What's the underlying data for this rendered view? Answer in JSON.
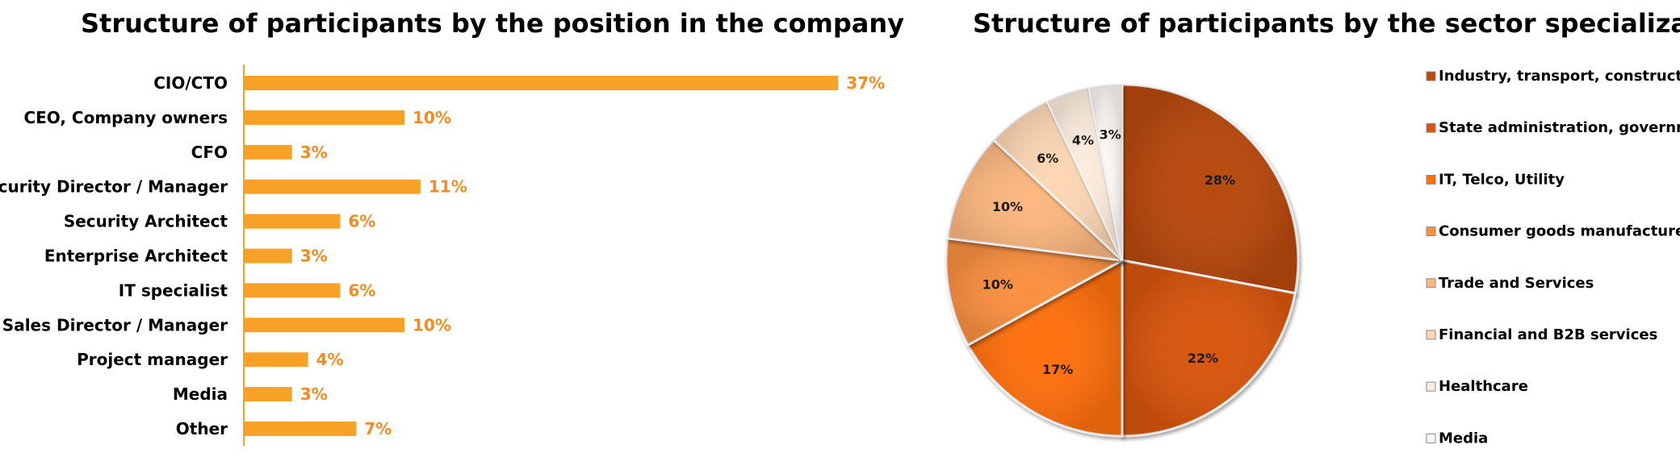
{
  "chart_data": [
    {
      "type": "bar",
      "orientation": "horizontal",
      "title": "Structure of participants by the position in the company",
      "categories": [
        "CIO/CTO",
        "CEO, Company owners",
        "CFO",
        "Security Director / Manager",
        "Security Architect",
        "Enterprise Architect",
        "IT specialist",
        "Sales Director / Manager",
        "Project  manager",
        "Media",
        "Other"
      ],
      "values": [
        37,
        10,
        3,
        11,
        6,
        3,
        6,
        10,
        4,
        3,
        7
      ],
      "value_labels": [
        "37%",
        "10%",
        "3%",
        "11%",
        "6%",
        "3%",
        "6%",
        "10%",
        "4%",
        "3%",
        "7%"
      ],
      "unit": "%",
      "bar_color": "#F7A127",
      "label_color": "#F58B1F",
      "grid": false
    },
    {
      "type": "pie",
      "title": "Structure of participants by the sector specialization",
      "categories": [
        "Industry, transport, construction",
        "State administration, government",
        "IT, Telco, Utility",
        "Consumer goods manufacturers",
        "Trade and Services",
        "Financial and B2B services",
        "Healthcare",
        "Media"
      ],
      "values": [
        28,
        22,
        17,
        10,
        10,
        6,
        4,
        3
      ],
      "value_labels": [
        "28%",
        "22%",
        "17%",
        "10%",
        "10%",
        "6%",
        "4%",
        "3%"
      ],
      "colors": [
        "#B84A0B",
        "#D9570F",
        "#FF6F0C",
        "#FA903F",
        "#FCB77F",
        "#FDD7B4",
        "#FCECDE",
        "#FCF7F3"
      ],
      "legend_position": "right"
    }
  ]
}
